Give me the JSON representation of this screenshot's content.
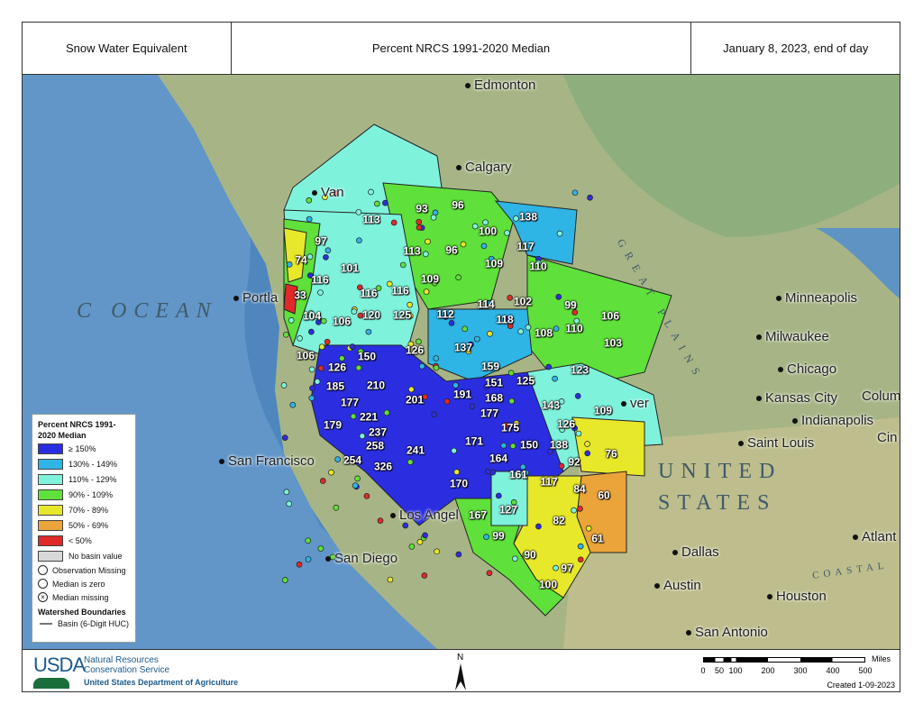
{
  "header": {
    "left": "Snow Water Equivalent",
    "center": "Percent NRCS 1991-2020 Median",
    "right": "January 8, 2023, end of day"
  },
  "legend": {
    "title": "Percent NRCS 1991-2020 Median",
    "classes": [
      {
        "label": "≥ 150%",
        "color": "#2b2ee0"
      },
      {
        "label": "130% - 149%",
        "color": "#2fb4e6"
      },
      {
        "label": "110% - 129%",
        "color": "#7ff2dc"
      },
      {
        "label": "90% - 109%",
        "color": "#5fe03a"
      },
      {
        "label": "70% - 89%",
        "color": "#e8e82a"
      },
      {
        "label": "50% - 69%",
        "color": "#eba43a"
      },
      {
        "label": "< 50%",
        "color": "#e02a2a"
      },
      {
        "label": "No basin value",
        "color": "#d8d8d8"
      }
    ],
    "symbols": [
      {
        "label": "Observation Missing",
        "icon": "circle-icon"
      },
      {
        "label": "Median is zero",
        "icon": "circle-icon"
      },
      {
        "label": "Median missing",
        "icon": "circle-x-icon"
      }
    ],
    "boundaries_title": "Watershed Boundaries",
    "boundary_label": "Basin (6-Digit HUC)"
  },
  "basins": [
    "97",
    "113",
    "93",
    "96",
    "138",
    "100",
    "117",
    "74",
    "101",
    "113",
    "96",
    "109",
    "110",
    "116",
    "109",
    "116",
    "116",
    "33",
    "114",
    "102",
    "99",
    "104",
    "106",
    "120",
    "125",
    "112",
    "106",
    "110",
    "108",
    "118",
    "137",
    "103",
    "106",
    "150",
    "126",
    "126",
    "159",
    "123",
    "151",
    "185",
    "210",
    "201",
    "191",
    "168",
    "125",
    "143",
    "177",
    "177",
    "109",
    "221",
    "179",
    "237",
    "175",
    "126",
    "258",
    "241",
    "171",
    "150",
    "138",
    "76",
    "254",
    "326",
    "164",
    "92",
    "161",
    "117",
    "170",
    "84",
    "60",
    "167",
    "127",
    "82",
    "99",
    "61",
    "90",
    "97",
    "100"
  ],
  "cities": [
    "Edmonton",
    "Calgary",
    "Van",
    "Portla",
    "San Francisco",
    "Los Angel",
    "San Diego",
    "Minneapolis",
    "Milwaukee",
    "Chicago",
    "Kansas City",
    "Indianapolis",
    "Saint Louis",
    "Colum",
    "Cin",
    "Dallas",
    "Atlant",
    "Austin",
    "Houston",
    "San Antonio",
    "ver"
  ],
  "map_text": {
    "ocean": "C OCEAN",
    "united": "UNITED",
    "states": "STATES",
    "plains": "GREAT PLAINS",
    "coastal": "COASTAL"
  },
  "footer": {
    "usda": "USDA",
    "agency1": "Natural Resources",
    "agency2": "Conservation Service",
    "dept": "United States Department of Agriculture",
    "north": "N",
    "scale_ticks": [
      "0",
      "50",
      "100",
      "200",
      "300",
      "400",
      "500"
    ],
    "scale_unit": "Miles",
    "created": "Created 1-09-2023"
  }
}
